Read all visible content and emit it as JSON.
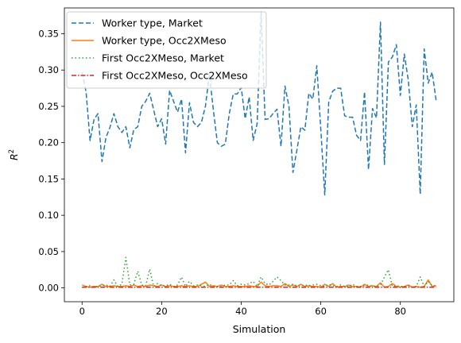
{
  "chart_data": {
    "type": "line",
    "xlabel": "Simulation",
    "ylabel_main": "R",
    "ylabel_sup": "2",
    "xlim": [
      -4.45,
      93.45
    ],
    "ylim": [
      -0.019,
      0.3855
    ],
    "x_ticks": [
      0,
      20,
      40,
      60,
      80
    ],
    "y_ticks": [
      0.0,
      0.05,
      0.1,
      0.15,
      0.2,
      0.25,
      0.3,
      0.35
    ],
    "y_tick_labels": [
      "0.00",
      "0.05",
      "0.10",
      "0.15",
      "0.20",
      "0.25",
      "0.30",
      "0.35"
    ],
    "grid": false,
    "legend_position": "upper-left",
    "x": [
      0,
      1,
      2,
      3,
      4,
      5,
      6,
      7,
      8,
      9,
      10,
      11,
      12,
      13,
      14,
      15,
      16,
      17,
      18,
      19,
      20,
      21,
      22,
      23,
      24,
      25,
      26,
      27,
      28,
      29,
      30,
      31,
      32,
      33,
      34,
      35,
      36,
      37,
      38,
      39,
      40,
      41,
      42,
      43,
      44,
      45,
      46,
      47,
      48,
      49,
      50,
      51,
      52,
      53,
      54,
      55,
      56,
      57,
      58,
      59,
      60,
      61,
      62,
      63,
      64,
      65,
      66,
      67,
      68,
      69,
      70,
      71,
      72,
      73,
      74,
      75,
      76,
      77,
      78,
      79,
      80,
      81,
      82,
      83,
      84,
      85,
      86,
      87,
      88,
      89
    ],
    "series": [
      {
        "name": "Worker type, Market",
        "color": "#1f77b4",
        "dash": "6,3",
        "values": [
          0.297,
          0.27,
          0.203,
          0.232,
          0.24,
          0.174,
          0.207,
          0.221,
          0.24,
          0.222,
          0.214,
          0.222,
          0.193,
          0.218,
          0.222,
          0.25,
          0.257,
          0.268,
          0.245,
          0.222,
          0.233,
          0.198,
          0.272,
          0.257,
          0.242,
          0.26,
          0.186,
          0.255,
          0.228,
          0.222,
          0.228,
          0.25,
          0.294,
          0.245,
          0.2,
          0.195,
          0.198,
          0.24,
          0.267,
          0.267,
          0.276,
          0.233,
          0.263,
          0.203,
          0.226,
          0.38,
          0.232,
          0.233,
          0.24,
          0.246,
          0.195,
          0.278,
          0.25,
          0.159,
          0.19,
          0.222,
          0.217,
          0.268,
          0.26,
          0.306,
          0.219,
          0.128,
          0.256,
          0.271,
          0.275,
          0.275,
          0.237,
          0.235,
          0.235,
          0.21,
          0.203,
          0.27,
          0.163,
          0.247,
          0.234,
          0.366,
          0.17,
          0.311,
          0.318,
          0.335,
          0.265,
          0.322,
          0.286,
          0.222,
          0.252,
          0.129,
          0.329,
          0.282,
          0.297,
          0.258
        ]
      },
      {
        "name": "Worker type, Occ2XMeso",
        "color": "#ff7f0e",
        "dash": "",
        "values": [
          0.004,
          0.002,
          0.001,
          0.002,
          0.002,
          0.005,
          0.002,
          0.002,
          0.003,
          0.002,
          0.002,
          0.003,
          0.002,
          0.004,
          0.002,
          0.003,
          0.002,
          0.004,
          0.003,
          0.002,
          0.004,
          0.002,
          0.003,
          0.002,
          0.002,
          0.003,
          0.002,
          0.003,
          0.002,
          0.002,
          0.005,
          0.008,
          0.002,
          0.003,
          0.002,
          0.004,
          0.002,
          0.002,
          0.003,
          0.002,
          0.002,
          0.002,
          0.003,
          0.002,
          0.002,
          0.008,
          0.003,
          0.002,
          0.003,
          0.003,
          0.002,
          0.006,
          0.002,
          0.004,
          0.002,
          0.005,
          0.002,
          0.003,
          0.002,
          0.002,
          0.001,
          0.005,
          0.002,
          0.006,
          0.001,
          0.002,
          0.002,
          0.004,
          0.002,
          0.002,
          0.001,
          0.005,
          0.002,
          0.003,
          0.002,
          0.007,
          0.001,
          0.002,
          0.006,
          0.002,
          0.001,
          0.002,
          0.004,
          0.001,
          0.002,
          0.001,
          0.002,
          0.011,
          0.002,
          0.003
        ]
      },
      {
        "name": "First Occ2XMeso, Market",
        "color": "#2ca02c",
        "dash": "1.5,3",
        "values": [
          0.001,
          0.002,
          0.003,
          0.001,
          0.002,
          0.003,
          0.004,
          0.002,
          0.011,
          0.002,
          0.005,
          0.042,
          0.004,
          0.005,
          0.023,
          0.004,
          0.003,
          0.026,
          0.002,
          0.006,
          0.003,
          0.003,
          0.005,
          0.002,
          0.004,
          0.015,
          0.002,
          0.009,
          0.003,
          0.004,
          0.003,
          0.002,
          0.005,
          0.002,
          0.002,
          0.002,
          0.004,
          0.004,
          0.01,
          0.003,
          0.005,
          0.004,
          0.006,
          0.009,
          0.002,
          0.015,
          0.006,
          0.004,
          0.009,
          0.015,
          0.01,
          0.004,
          0.004,
          0.005,
          0.003,
          0.003,
          0.004,
          0.003,
          0.004,
          0.005,
          0.003,
          0.002,
          0.005,
          0.003,
          0.002,
          0.004,
          0.002,
          0.002,
          0.005,
          0.002,
          0.002,
          0.003,
          0.004,
          0.002,
          0.002,
          0.004,
          0.015,
          0.025,
          0.002,
          0.003,
          0.002,
          0.002,
          0.003,
          0.001,
          0.002,
          0.015,
          0.002,
          0.009,
          0.003,
          0.003
        ]
      },
      {
        "name": "First Occ2XMeso, Occ2XMeso",
        "color": "#d62728",
        "dash": "6,2,1.5,2",
        "values": [
          0.001,
          0.001,
          0.001,
          0.001,
          0.001,
          0.001,
          0.001,
          0.001,
          0.001,
          0.001,
          0.001,
          0.001,
          0.001,
          0.001,
          0.001,
          0.001,
          0.001,
          0.001,
          0.001,
          0.001,
          0.001,
          0.001,
          0.001,
          0.001,
          0.001,
          0.001,
          0.001,
          0.001,
          0.001,
          0.001,
          0.001,
          0.001,
          0.001,
          0.001,
          0.001,
          0.001,
          0.001,
          0.001,
          0.001,
          0.001,
          0.001,
          0.001,
          0.001,
          0.001,
          0.001,
          0.001,
          0.001,
          0.001,
          0.001,
          0.001,
          0.001,
          0.001,
          0.001,
          0.001,
          0.001,
          0.001,
          0.001,
          0.001,
          0.001,
          0.001,
          0.001,
          0.001,
          0.001,
          0.001,
          0.001,
          0.001,
          0.001,
          0.001,
          0.001,
          0.001,
          0.001,
          0.001,
          0.001,
          0.001,
          0.001,
          0.001,
          0.001,
          0.001,
          0.001,
          0.001,
          0.001,
          0.001,
          0.001,
          0.001,
          0.001,
          0.001,
          0.001,
          0.001,
          0.001,
          0.001
        ]
      }
    ]
  }
}
